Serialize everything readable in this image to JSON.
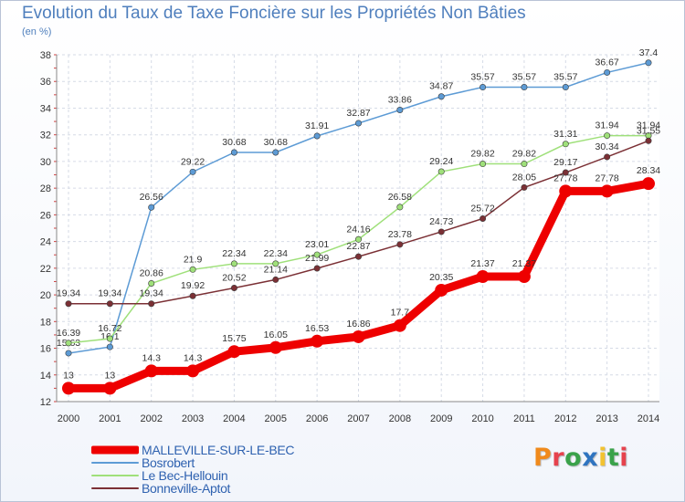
{
  "title": "Evolution du Taux de Taxe Foncière sur les Propriétés Non Bâties",
  "subtitle": "(en %)",
  "brand": {
    "text": "Proxiti",
    "colors": [
      "#f08a1c",
      "#e6424d",
      "#3aa24a",
      "#2f74c0",
      "#f2c230",
      "#3aa24a",
      "#e6424d"
    ]
  },
  "chart_data": {
    "type": "line",
    "title": "Evolution du Taux de Taxe Foncière sur les Propriétés Non Bâties",
    "ylabel": "(en %)",
    "xlabel": "",
    "ylim": [
      12,
      38
    ],
    "yticks": [
      12,
      14,
      16,
      18,
      20,
      22,
      24,
      26,
      28,
      30,
      32,
      34,
      36,
      38
    ],
    "x": [
      "2000",
      "2001",
      "2002",
      "2003",
      "2004",
      "2005",
      "2006",
      "2007",
      "2008",
      "2009",
      "2010",
      "2011",
      "2012",
      "2013",
      "2014"
    ],
    "grid": true,
    "legend_position": "bottom-left",
    "series": [
      {
        "name": "MALLEVILLE-SUR-LE-BEC",
        "color": "#ee0000",
        "emphasis": true,
        "values": [
          13,
          13,
          14.3,
          14.3,
          15.75,
          16.05,
          16.53,
          16.86,
          17.7,
          20.35,
          21.37,
          21.37,
          27.78,
          27.78,
          28.34
        ],
        "labels": [
          "13",
          "13",
          "14.3",
          "14.3",
          "15.75",
          "16.05",
          "16.53",
          "16.86",
          "17.7",
          "20.35",
          "21.37",
          "21.37",
          "27.78",
          "27.78",
          "28.34"
        ]
      },
      {
        "name": "Bosrobert",
        "color": "#5d9bd5",
        "emphasis": false,
        "values": [
          15.63,
          16.1,
          26.56,
          29.22,
          30.68,
          30.68,
          31.91,
          32.87,
          33.86,
          34.87,
          35.57,
          35.57,
          35.57,
          36.67,
          37.4
        ],
        "labels": [
          "15.63",
          "16.1",
          "26.56",
          "29.22",
          "30.68",
          "30.68",
          "31.91",
          "32.87",
          "33.86",
          "34.87",
          "35.57",
          "35.57",
          "35.57",
          "36.67",
          "37.4"
        ]
      },
      {
        "name": "Le Bec-Hellouin",
        "color": "#9fe07a",
        "emphasis": false,
        "values": [
          16.39,
          16.72,
          20.86,
          21.9,
          22.34,
          22.34,
          23.01,
          24.16,
          26.58,
          29.24,
          29.82,
          29.82,
          31.31,
          31.94,
          31.94
        ],
        "labels": [
          "16.39",
          "16.72",
          "20.86",
          "21.9",
          "22.34",
          "22.34",
          "23.01",
          "24.16",
          "26.58",
          "29.24",
          "29.82",
          "29.82",
          "31.31",
          "31.94",
          "31.94"
        ]
      },
      {
        "name": "Bonneville-Aptot",
        "color": "#7b3035",
        "emphasis": false,
        "values": [
          19.34,
          19.34,
          19.34,
          19.92,
          20.52,
          21.14,
          21.99,
          22.87,
          23.78,
          24.73,
          25.72,
          28.05,
          29.17,
          30.34,
          31.55
        ],
        "labels": [
          "19.34",
          "19.34",
          "19.34",
          "19.92",
          "20.52",
          "21.14",
          "21.99",
          "22.87",
          "23.78",
          "24.73",
          "25.72",
          "28.05",
          "29.17",
          "30.34",
          "31.55"
        ]
      }
    ]
  }
}
